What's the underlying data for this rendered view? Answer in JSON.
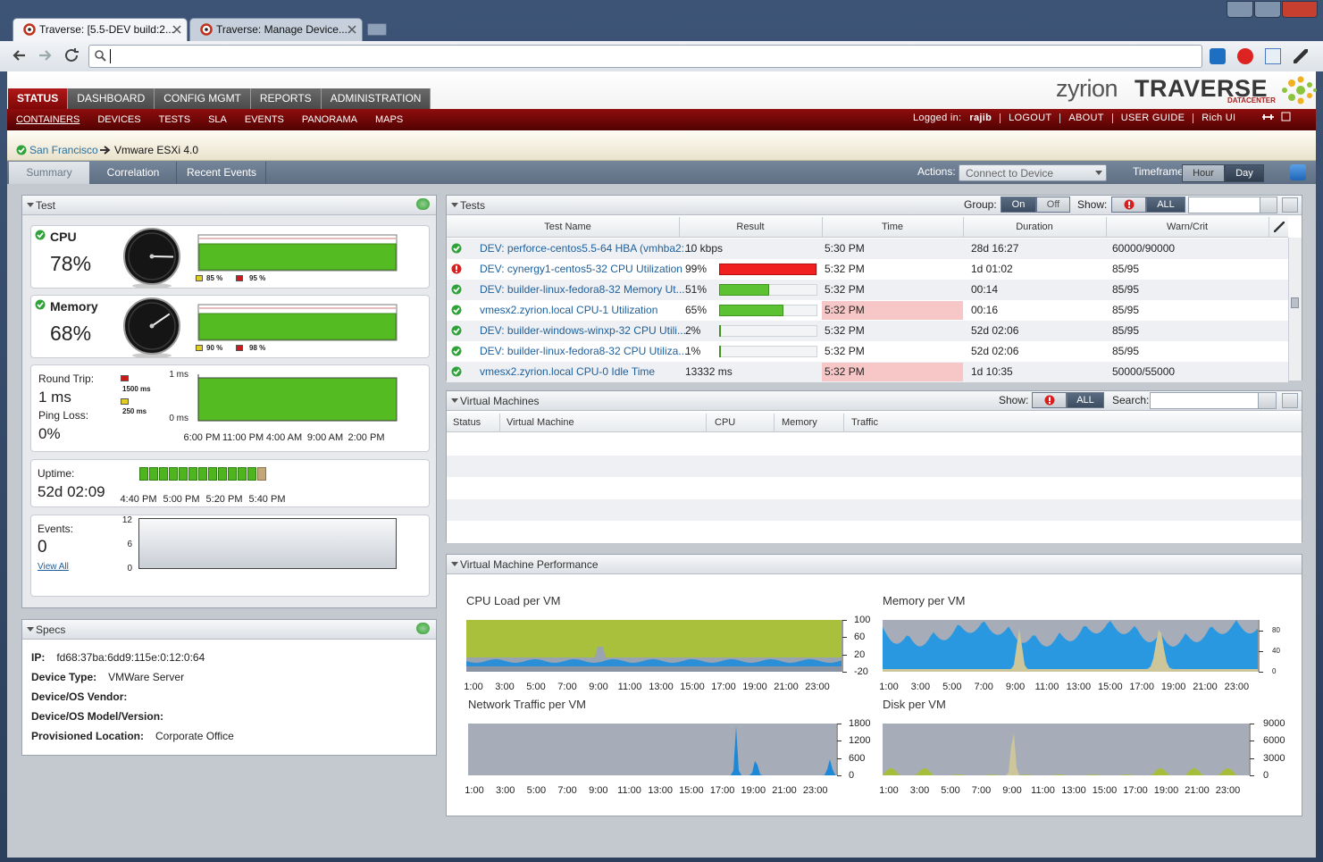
{
  "browser": {
    "tabs": [
      "Traverse: [5.5-DEV build:2...",
      "Traverse: Manage Device..."
    ]
  },
  "logo": {
    "brand": "zyrion",
    "product": "TRAVERSE",
    "edition": "DATACENTER"
  },
  "nav": {
    "main": [
      "STATUS",
      "DASHBOARD",
      "CONFIG MGMT",
      "REPORTS",
      "ADMINISTRATION"
    ],
    "sub": [
      "CONTAINERS",
      "DEVICES",
      "TESTS",
      "SLA",
      "EVENTS",
      "PANORAMA",
      "MAPS"
    ],
    "logged_in_label": "Logged in:",
    "user": "rajib",
    "right": [
      "LOGOUT",
      "ABOUT",
      "USER GUIDE",
      "Rich UI"
    ]
  },
  "breadcrumb": {
    "parent": "San Francisco",
    "current": "Vmware ESXi 4.0"
  },
  "tabs": [
    "Summary",
    "Correlation",
    "Recent Events"
  ],
  "toolbar": {
    "actions_label": "Actions:",
    "action": "Connect to Device",
    "timeframe_label": "Timeframe:",
    "timeframes": [
      "Hour",
      "Day"
    ]
  },
  "test_panel": {
    "title": "Test",
    "cpu": {
      "label": "CPU",
      "value": "78%",
      "legend": [
        "85 %",
        "95 %"
      ]
    },
    "memory": {
      "label": "Memory",
      "value": "68%",
      "legend": [
        "90 %",
        "98 %"
      ]
    },
    "network": {
      "round_trip_label": "Round Trip:",
      "round_trip": "1 ms",
      "ping_loss_label": "Ping Loss:",
      "ping_loss": "0%",
      "legend": [
        "1500 ms",
        "250 ms"
      ],
      "yticks": [
        "1 ms",
        "0 ms"
      ],
      "xticks": [
        "6:00 PM",
        "11:00 PM",
        "4:00 AM",
        "9:00 AM",
        "2:00 PM"
      ]
    },
    "uptime": {
      "label": "Uptime:",
      "value": "52d 02:09",
      "xticks": [
        "4:40 PM",
        "5:00 PM",
        "5:20 PM",
        "5:40 PM"
      ]
    },
    "events": {
      "label": "Events:",
      "value": "0",
      "link": "View All",
      "yticks": [
        "12",
        "6",
        "0"
      ]
    }
  },
  "specs": {
    "title": "Specs",
    "rows": [
      [
        "IP:",
        "fd68:37ba:6dd9:115e:0:12:0:64"
      ],
      [
        "Device Type:",
        "VMWare Server"
      ],
      [
        "Device/OS Vendor:",
        ""
      ],
      [
        "Device/OS Model/Version:",
        ""
      ],
      [
        "Provisioned Location:",
        "Corporate Office"
      ]
    ]
  },
  "tests": {
    "title": "Tests",
    "group_label": "Group:",
    "group": [
      "On",
      "Off"
    ],
    "show_label": "Show:",
    "show_all": "ALL",
    "columns": [
      "Test Name",
      "Result",
      "Time",
      "Duration",
      "Warn/Crit"
    ],
    "rows": [
      {
        "status": "ok",
        "name": "DEV: perforce-centos5.5-64 HBA (vmhba2:...",
        "result": "10 kbps",
        "bar": null,
        "time": "5:30 PM",
        "time_alert": false,
        "duration": "28d 16:27",
        "warn_crit": "60000/90000"
      },
      {
        "status": "critical",
        "name": "DEV: cynergy1-centos5-32 CPU Utilization",
        "result": "99%",
        "bar": 99,
        "time": "5:32 PM",
        "time_alert": false,
        "duration": "1d 01:02",
        "warn_crit": "85/95"
      },
      {
        "status": "ok",
        "name": "DEV: builder-linux-fedora8-32 Memory Ut...",
        "result": "51%",
        "bar": 51,
        "time": "5:32 PM",
        "time_alert": false,
        "duration": "00:14",
        "warn_crit": "85/95"
      },
      {
        "status": "ok",
        "name": "vmesx2.zyrion.local CPU-1 Utilization",
        "result": "65%",
        "bar": 65,
        "time": "5:32 PM",
        "time_alert": true,
        "duration": "00:16",
        "warn_crit": "85/95"
      },
      {
        "status": "ok",
        "name": "DEV: builder-windows-winxp-32 CPU Utili...",
        "result": "2%",
        "bar": 2,
        "time": "5:32 PM",
        "time_alert": false,
        "duration": "52d 02:06",
        "warn_crit": "85/95"
      },
      {
        "status": "ok",
        "name": "DEV: builder-linux-fedora8-32 CPU Utiliza...",
        "result": "1%",
        "bar": 1,
        "time": "5:32 PM",
        "time_alert": false,
        "duration": "52d 02:06",
        "warn_crit": "85/95"
      },
      {
        "status": "ok",
        "name": "vmesx2.zyrion.local CPU-0 Idle Time",
        "result": "13332 ms",
        "bar": null,
        "time": "5:32 PM",
        "time_alert": true,
        "duration": "1d 10:35",
        "warn_crit": "50000/55000"
      }
    ]
  },
  "vms": {
    "title": "Virtual Machines",
    "show_label": "Show:",
    "show_all": "ALL",
    "search_label": "Search:",
    "columns": [
      "Status",
      "Virtual Machine",
      "CPU",
      "Memory",
      "Traffic"
    ]
  },
  "performance": {
    "title": "Virtual Machine Performance",
    "charts": [
      {
        "title": "CPU Load per VM",
        "yticks": [
          "100",
          "60",
          "20",
          "-20"
        ],
        "xticks": [
          "1:00",
          "3:00",
          "5:00",
          "7:00",
          "9:00",
          "11:00",
          "13:00",
          "15:00",
          "17:00",
          "19:00",
          "21:00",
          "23:00"
        ]
      },
      {
        "title": "Memory per VM",
        "yticks": [
          "80",
          "40",
          "0"
        ],
        "xticks": [
          "1:00",
          "3:00",
          "5:00",
          "7:00",
          "9:00",
          "11:00",
          "13:00",
          "15:00",
          "17:00",
          "19:00",
          "21:00",
          "23:00"
        ]
      },
      {
        "title": "Network Traffic per VM",
        "yticks": [
          "1800",
          "1200",
          "600",
          "0"
        ],
        "xticks": [
          "1:00",
          "3:00",
          "5:00",
          "7:00",
          "9:00",
          "11:00",
          "13:00",
          "15:00",
          "17:00",
          "19:00",
          "21:00",
          "23:00"
        ]
      },
      {
        "title": "Disk per VM",
        "yticks": [
          "9000",
          "6000",
          "3000",
          "0"
        ],
        "xticks": [
          "1:00",
          "3:00",
          "5:00",
          "7:00",
          "9:00",
          "11:00",
          "13:00",
          "15:00",
          "17:00",
          "19:00",
          "21:00",
          "23:00"
        ]
      }
    ]
  }
}
